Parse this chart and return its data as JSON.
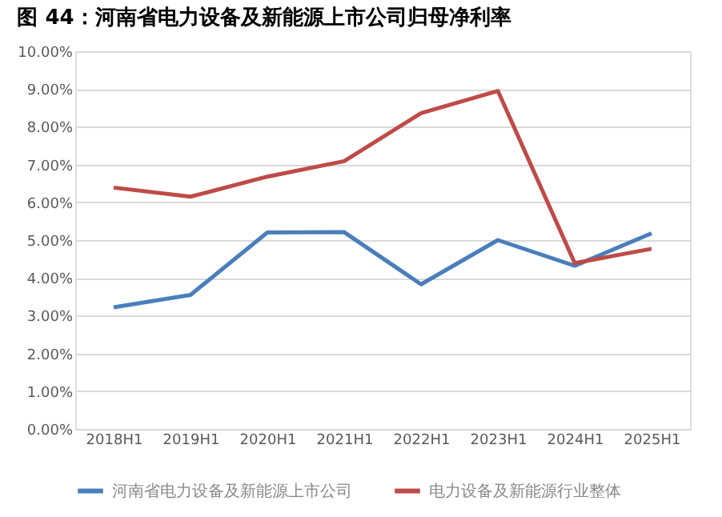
{
  "chart_data": {
    "type": "line",
    "title": "图 44：河南省电力设备及新能源上市公司归母净利率",
    "categories": [
      "2018H1",
      "2019H1",
      "2020H1",
      "2021H1",
      "2022H1",
      "2023H1",
      "2024H1",
      "2025H1"
    ],
    "series": [
      {
        "name": "河南省电力设备及新能源上市公司",
        "color": "#4a7ebb",
        "values": [
          3.22,
          3.55,
          5.2,
          5.21,
          3.83,
          5.0,
          4.32,
          5.18
        ]
      },
      {
        "name": "电力设备及新能源行业整体",
        "color": "#be4b48",
        "values": [
          6.39,
          6.15,
          6.68,
          7.09,
          8.36,
          8.95,
          4.39,
          4.77
        ]
      }
    ],
    "ylim": [
      0,
      10
    ],
    "yticks": [
      {
        "value": 0,
        "label": "0.00%"
      },
      {
        "value": 1,
        "label": "1.00%"
      },
      {
        "value": 2,
        "label": "2.00%"
      },
      {
        "value": 3,
        "label": "3.00%"
      },
      {
        "value": 4,
        "label": "4.00%"
      },
      {
        "value": 5,
        "label": "5.00%"
      },
      {
        "value": 6,
        "label": "6.00%"
      },
      {
        "value": 7,
        "label": "7.00%"
      },
      {
        "value": 8,
        "label": "8.00%"
      },
      {
        "value": 9,
        "label": "9.00%"
      },
      {
        "value": 10,
        "label": "10.00%"
      }
    ],
    "grid": "y",
    "legend": "bottom",
    "marker": "none",
    "line_style": "solid"
  }
}
